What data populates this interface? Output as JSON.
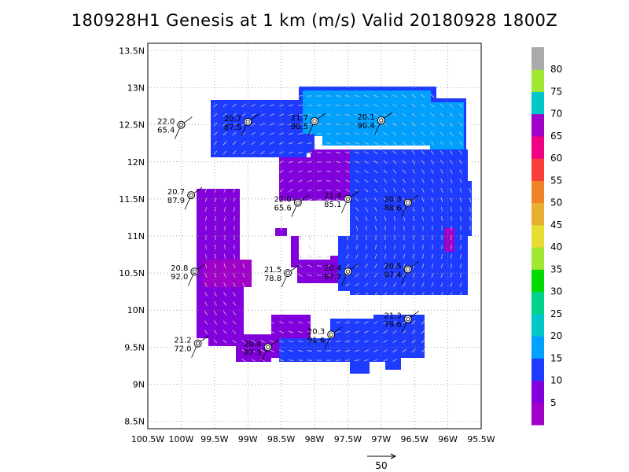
{
  "title": "180928H1 Genesis at 1 km (m/s) Valid 20180928  1800Z",
  "axes": {
    "lon_min": -100.5,
    "lon_max": -95.5,
    "lat_min": 8.4,
    "lat_max": 13.6,
    "lon_ticks": [
      {
        "v": -100.5,
        "t": "100.5W"
      },
      {
        "v": -100,
        "t": "100W"
      },
      {
        "v": -99.5,
        "t": "99.5W"
      },
      {
        "v": -99,
        "t": "99W"
      },
      {
        "v": -98.5,
        "t": "98.5W"
      },
      {
        "v": -98,
        "t": "98W"
      },
      {
        "v": -97.5,
        "t": "97.5W"
      },
      {
        "v": -97,
        "t": "97W"
      },
      {
        "v": -96.5,
        "t": "96.5W"
      },
      {
        "v": -96,
        "t": "96W"
      },
      {
        "v": -95.5,
        "t": "95.5W"
      }
    ],
    "lat_ticks": [
      {
        "v": 8.5,
        "t": "8.5N"
      },
      {
        "v": 9,
        "t": "9N"
      },
      {
        "v": 9.5,
        "t": "9.5N"
      },
      {
        "v": 10,
        "t": "10N"
      },
      {
        "v": 10.5,
        "t": "10.5N"
      },
      {
        "v": 11,
        "t": "11N"
      },
      {
        "v": 11.5,
        "t": "11.5N"
      },
      {
        "v": 12,
        "t": "12N"
      },
      {
        "v": 12.5,
        "t": "12.5N"
      },
      {
        "v": 13,
        "t": "13N"
      },
      {
        "v": 13.5,
        "t": "13.5N"
      }
    ]
  },
  "colorbar": {
    "colors": [
      "#a000c8",
      "#8200dc",
      "#1e3cff",
      "#00a0ff",
      "#00c8c8",
      "#00d28c",
      "#00dc00",
      "#a0e632",
      "#e6dc32",
      "#e6af2d",
      "#f08228",
      "#fa3c3c",
      "#f00082",
      "#a000c8",
      "#00c8c8",
      "#a0e632",
      "#aaaaaa"
    ],
    "labels": [
      "5",
      "10",
      "15",
      "20",
      "25",
      "30",
      "35",
      "40",
      "45",
      "50",
      "55",
      "60",
      "65",
      "70",
      "75",
      "80"
    ]
  },
  "reference_vector": {
    "label": "50"
  },
  "stations": [
    {
      "lon": -100.0,
      "lat": 12.5,
      "l1": "22.0",
      "l2": "65.4"
    },
    {
      "lon": -99.0,
      "lat": 12.54,
      "l1": "20.7",
      "l2": "87.5"
    },
    {
      "lon": -98.0,
      "lat": 12.55,
      "l1": "21.7",
      "l2": "90.5"
    },
    {
      "lon": -97.0,
      "lat": 12.56,
      "l1": "20.1",
      "l2": "90.4"
    },
    {
      "lon": -99.85,
      "lat": 11.55,
      "l1": "20.7",
      "l2": "87.9"
    },
    {
      "lon": -98.25,
      "lat": 11.45,
      "l1": "22.0",
      "l2": "65.6"
    },
    {
      "lon": -97.5,
      "lat": 11.5,
      "l1": "21.4",
      "l2": "85.1"
    },
    {
      "lon": -96.6,
      "lat": 11.45,
      "l1": "20.3",
      "l2": "88.6"
    },
    {
      "lon": -99.8,
      "lat": 10.52,
      "l1": "20.8",
      "l2": "92.0"
    },
    {
      "lon": -98.4,
      "lat": 10.5,
      "l1": "21.5",
      "l2": "78.8"
    },
    {
      "lon": -97.5,
      "lat": 10.52,
      "l1": "20.4",
      "l2": "87.7"
    },
    {
      "lon": -96.6,
      "lat": 10.55,
      "l1": "20.5",
      "l2": "87.4"
    },
    {
      "lon": -99.75,
      "lat": 9.55,
      "l1": "21.2",
      "l2": "72.0"
    },
    {
      "lon": -98.7,
      "lat": 9.5,
      "l1": "20.4",
      "l2": "87.3"
    },
    {
      "lon": -97.75,
      "lat": 9.67,
      "l1": "20.3",
      "l2": "91.6"
    },
    {
      "lon": -96.6,
      "lat": 9.88,
      "l1": "21.3",
      "l2": "79.6"
    }
  ]
}
